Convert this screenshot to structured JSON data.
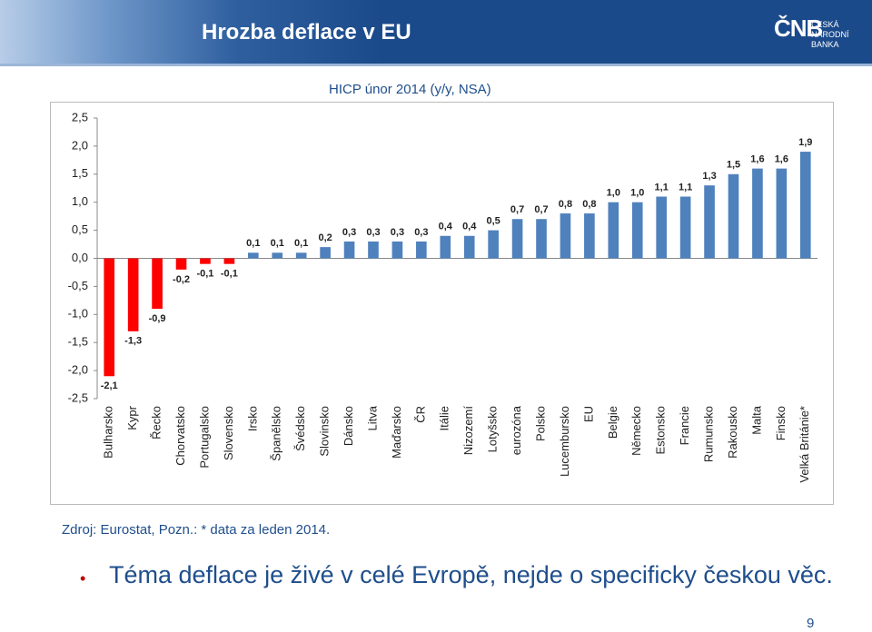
{
  "header": {
    "title": "Hrozba deflace v EU",
    "logo": "ČNB",
    "logo_line1": "ČESKÁ",
    "logo_line2": "NÁRODNÍ BANKA"
  },
  "chart_data": {
    "type": "bar",
    "title": "HICP únor 2014 (y/y, NSA)",
    "categories": [
      "Bulharsko",
      "Kypr",
      "Řecko",
      "Chorvatsko",
      "Portugalsko",
      "Slovensko",
      "Irsko",
      "Španělsko",
      "Švédsko",
      "Slovinsko",
      "Dánsko",
      "Litva",
      "Maďarsko",
      "ČR",
      "Itálie",
      "Nizozemí",
      "Lotyšsko",
      "eurozóna",
      "Polsko",
      "Lucembursko",
      "EU",
      "Belgie",
      "Německo",
      "Estonsko",
      "Francie",
      "Rumunsko",
      "Rakousko",
      "Malta",
      "Finsko",
      "Velká Británie*"
    ],
    "values": [
      -2.1,
      -1.3,
      -0.9,
      -0.2,
      -0.1,
      -0.1,
      0.1,
      0.1,
      0.1,
      0.2,
      0.3,
      0.3,
      0.3,
      0.3,
      0.4,
      0.4,
      0.5,
      0.7,
      0.7,
      0.8,
      0.8,
      1.0,
      1.0,
      1.1,
      1.1,
      1.3,
      1.5,
      1.6,
      1.6,
      1.9
    ],
    "value_labels": [
      "-2,1",
      "-1,3",
      "-0,9",
      "-0,2",
      "-0,1",
      "-0,1",
      "0,1",
      "0,1",
      "0,1",
      "0,2",
      "0,3",
      "0,3",
      "0,3",
      "0,3",
      "0,4",
      "0,4",
      "0,5",
      "0,7",
      "0,7",
      "0,8",
      "0,8",
      "1,0",
      "1,0",
      "1,1",
      "1,1",
      "1,3",
      "1,5",
      "1,6",
      "1,6",
      "1,9"
    ],
    "color": "#4f81bd",
    "negative_color": "#ff0000",
    "ylim": [
      -2.5,
      2.5
    ],
    "yticks": [
      {
        "value": 2.5,
        "label": "2,5"
      },
      {
        "value": 2.0,
        "label": "2,0"
      },
      {
        "value": 1.5,
        "label": "1,5"
      },
      {
        "value": 1.0,
        "label": "1,0"
      },
      {
        "value": 0.5,
        "label": "0,5"
      },
      {
        "value": 0,
        "label": "0,0"
      },
      {
        "value": -0.5,
        "label": "-0,5"
      },
      {
        "value": -1.0,
        "label": "-1,0"
      },
      {
        "value": -1.5,
        "label": "-1,5"
      },
      {
        "value": -2.0,
        "label": "-2,0"
      },
      {
        "value": -2.5,
        "label": "-2,5"
      }
    ],
    "grid": false
  },
  "source": "Zdroj: Eurostat, Pozn.: * data za leden 2014.",
  "bullet": "Téma deflace je živé v celé Evropě, nejde o specificky českou věc.",
  "page_number": "9"
}
